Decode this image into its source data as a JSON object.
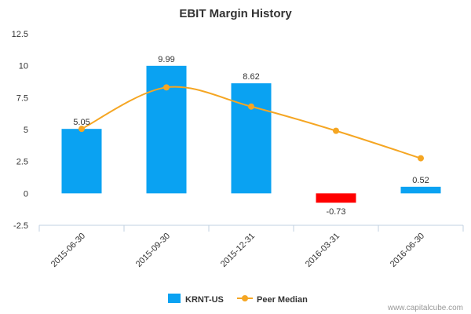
{
  "chart_data": {
    "type": "bar",
    "title": "EBIT Margin History",
    "xlabel": "",
    "ylabel": "",
    "categories": [
      "2015-06-30",
      "2015-09-30",
      "2015-12-31",
      "2016-03-31",
      "2016-06-30"
    ],
    "series": [
      {
        "name": "KRNT-US",
        "type": "bar",
        "values": [
          5.05,
          9.99,
          8.62,
          -0.73,
          0.52
        ],
        "data_labels": [
          "5.05",
          "9.99",
          "8.62",
          "-0.73",
          "0.52"
        ],
        "color": "#0aa2f2",
        "negative_color": "#ff0000"
      },
      {
        "name": "Peer Median",
        "type": "line",
        "values": [
          5.05,
          8.3,
          6.8,
          4.9,
          2.75
        ],
        "color": "#f5a623"
      }
    ],
    "ylim": [
      -2.5,
      12.5
    ],
    "yticks": [
      -2.5,
      0,
      2.5,
      5,
      7.5,
      10,
      12.5
    ],
    "ytick_labels": [
      "-2.5",
      "0",
      "2.5",
      "5",
      "7.5",
      "10",
      "12.5"
    ],
    "grid": false,
    "legend_position": "bottom-center"
  },
  "footer": {
    "source": "www.capitalcube.com"
  }
}
